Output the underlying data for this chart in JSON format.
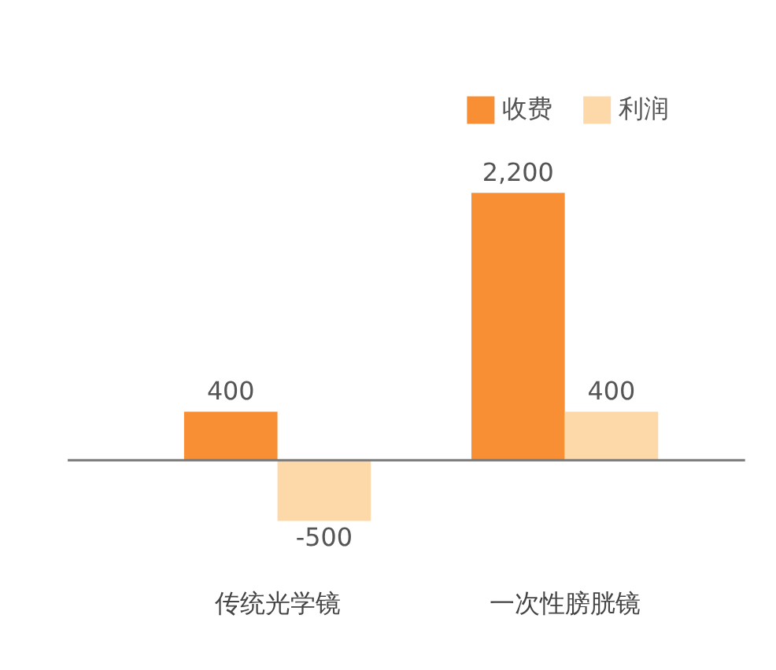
{
  "chart_data": {
    "type": "bar",
    "categories": [
      "传统光学镜",
      "一次性膀胱镜"
    ],
    "series": [
      {
        "name": "收费",
        "color": "#f98f34",
        "values": [
          400,
          2200
        ],
        "value_labels": [
          "400",
          "2,200"
        ]
      },
      {
        "name": "利润",
        "color": "#fdd9a9",
        "values": [
          -500,
          400
        ],
        "value_labels": [
          "-500",
          "400"
        ]
      }
    ],
    "ref_lines": [
      {
        "axis": "y",
        "value": 0,
        "color": "#777777"
      }
    ],
    "legend": "top right",
    "grid": false
  }
}
